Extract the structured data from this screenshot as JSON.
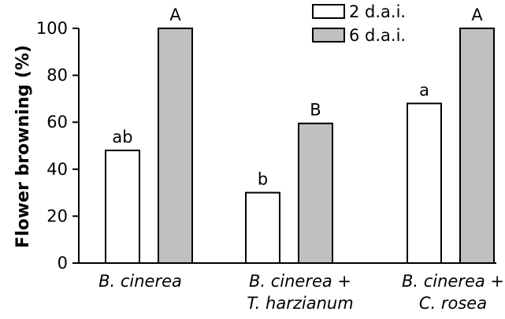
{
  "chart_data": {
    "type": "bar",
    "title": "",
    "xlabel": "",
    "ylabel": "Flower browning (%)",
    "ylim": [
      0,
      100
    ],
    "yticks": [
      "0",
      "20",
      "40",
      "60",
      "80",
      "100"
    ],
    "categories": [
      [
        "B. cinerea"
      ],
      [
        "B. cinerea +",
        "T. harzianum"
      ],
      [
        "B. cinerea +",
        "C. rosea"
      ]
    ],
    "series": [
      {
        "name": "2 d.a.i.",
        "values": [
          48,
          30,
          68
        ],
        "labels": [
          "ab",
          "b",
          "a"
        ],
        "color": "#ffffff"
      },
      {
        "name": "6 d.a.i.",
        "values": [
          100,
          59.5,
          100
        ],
        "labels": [
          "A",
          "B",
          "A"
        ],
        "color": "#c0c0c0"
      }
    ],
    "legend_position": "top-right",
    "grid": false
  }
}
